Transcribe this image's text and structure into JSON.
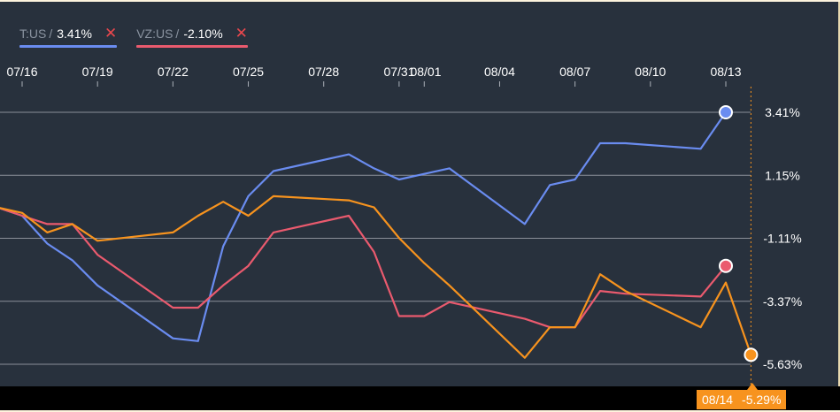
{
  "legend": [
    {
      "ticker": "T:US",
      "value": "3.41%",
      "color": "#6a8cf0",
      "close_icon": "close-icon",
      "close_color": "#e9474d"
    },
    {
      "ticker": "VZ:US",
      "value": "-2.10%",
      "color": "#ea5a6e",
      "close_icon": "close-icon",
      "close_color": "#e9474d"
    }
  ],
  "tooltip": {
    "date": "08/14",
    "value": "-5.29%",
    "color": "#f7931e"
  },
  "chart_data": {
    "type": "line",
    "x_ticks": [
      "07/16",
      "07/19",
      "07/22",
      "07/25",
      "07/28",
      "07/31",
      "08/01",
      "08/04",
      "08/07",
      "08/10",
      "08/13"
    ],
    "y_ticks": [
      "3.41%",
      "1.15%",
      "-1.11%",
      "-3.37%",
      "-5.63%"
    ],
    "y_tick_values": [
      3.41,
      1.15,
      -1.11,
      -3.37,
      -5.63
    ],
    "grid": true,
    "series": [
      {
        "name": "T:US",
        "color": "#6a8cf0",
        "x": [
          "07/15",
          "07/16",
          "07/17",
          "07/18",
          "07/19",
          "07/22",
          "07/23",
          "07/24",
          "07/25",
          "07/26",
          "07/29",
          "07/30",
          "07/31",
          "08/01",
          "08/02",
          "08/05",
          "08/06",
          "08/07",
          "08/08",
          "08/09",
          "08/12",
          "08/13"
        ],
        "y": [
          0.0,
          -0.3,
          -1.3,
          -1.9,
          -2.8,
          -4.7,
          -4.8,
          -1.4,
          0.4,
          1.3,
          1.9,
          1.4,
          1.0,
          1.2,
          1.4,
          -0.6,
          0.8,
          1.0,
          2.3,
          2.3,
          2.1,
          3.41
        ]
      },
      {
        "name": "VZ:US",
        "color": "#ea5a6e",
        "x": [
          "07/15",
          "07/16",
          "07/17",
          "07/18",
          "07/19",
          "07/22",
          "07/23",
          "07/24",
          "07/25",
          "07/26",
          "07/29",
          "07/30",
          "07/31",
          "08/01",
          "08/02",
          "08/05",
          "08/06",
          "08/07",
          "08/08",
          "08/09",
          "08/12",
          "08/13"
        ],
        "y": [
          0.0,
          -0.3,
          -0.6,
          -0.6,
          -1.7,
          -3.6,
          -3.6,
          -2.8,
          -2.1,
          -0.9,
          -0.3,
          -1.6,
          -3.9,
          -3.9,
          -3.4,
          -4.0,
          -4.3,
          -4.3,
          -3.0,
          -3.1,
          -3.2,
          -2.1
        ]
      },
      {
        "name": "",
        "color": "#f7931e",
        "x": [
          "07/15",
          "07/16",
          "07/17",
          "07/18",
          "07/19",
          "07/22",
          "07/23",
          "07/24",
          "07/25",
          "07/26",
          "07/29",
          "07/30",
          "07/31",
          "08/01",
          "08/02",
          "08/05",
          "08/06",
          "08/07",
          "08/08",
          "08/09",
          "08/12",
          "08/13",
          "08/14"
        ],
        "y": [
          0.0,
          -0.2,
          -0.9,
          -0.6,
          -1.2,
          -0.9,
          -0.3,
          0.2,
          -0.3,
          0.4,
          0.25,
          0.0,
          -1.1,
          -2.0,
          -2.8,
          -5.4,
          -4.3,
          -4.3,
          -2.4,
          -3.0,
          -4.3,
          -2.7,
          -5.29
        ]
      }
    ]
  }
}
